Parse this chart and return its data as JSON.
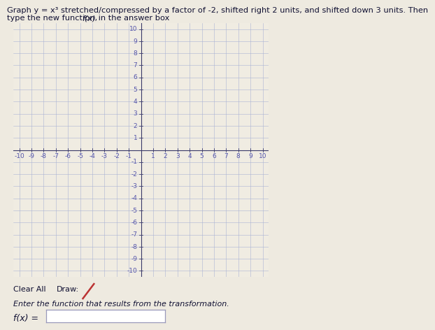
{
  "title_line1": "Graph y = x³ stretched/compressed by a factor of -2, shifted right 2 units, and shifted down 3 units. Then",
  "title_line2_part1": "type the new function, ",
  "title_line2_italic": "f(x)",
  "title_line2_part2": " in the answer box",
  "xmin": -10,
  "xmax": 10,
  "ymin": -10,
  "ymax": 10,
  "xtick_labels": [
    "-10",
    "-9",
    "-8",
    "-7",
    "-6",
    "-5",
    "-4",
    "-3",
    "-2",
    "-1",
    "1",
    "2",
    "3",
    "4",
    "5",
    "6",
    "7",
    "8",
    "9",
    "10"
  ],
  "xtick_vals": [
    -10,
    -9,
    -8,
    -7,
    -6,
    -5,
    -4,
    -3,
    -2,
    -1,
    1,
    2,
    3,
    4,
    5,
    6,
    7,
    8,
    9,
    10
  ],
  "ytick_labels": [
    "-10",
    "-9",
    "-8",
    "-7",
    "-6",
    "-5",
    "-4",
    "-3",
    "-2",
    "-1",
    "1",
    "2",
    "3",
    "4",
    "5",
    "6",
    "7",
    "8",
    "9",
    "10"
  ],
  "ytick_vals": [
    -10,
    -9,
    -8,
    -7,
    -6,
    -5,
    -4,
    -3,
    -2,
    -1,
    1,
    2,
    3,
    4,
    5,
    6,
    7,
    8,
    9,
    10
  ],
  "grid_color": "#aab4d4",
  "axis_color": "#3a3a6a",
  "tick_color": "#5555aa",
  "background_color": "#eeeae0",
  "plot_bg_color": "#f0ece2",
  "title_color": "#111133",
  "title_fontsize": 8.2,
  "tick_fontsize": 6.5,
  "bottom_fontsize": 8.0,
  "fx_fontsize": 9.0,
  "clear_all_label": "Clear All",
  "draw_label": "Draw:",
  "enter_label": "Enter the function that results from the transformation.",
  "fx_label": "f(x) ="
}
